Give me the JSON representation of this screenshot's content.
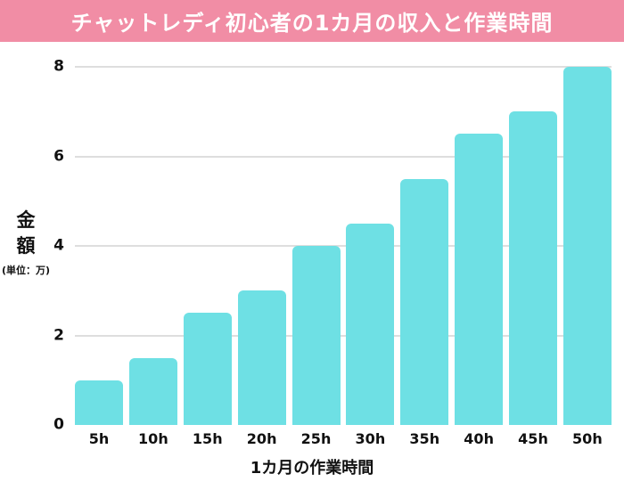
{
  "header": {
    "title": "チャットレディ初心者の1カ月の収入と作業時間"
  },
  "chart_data": {
    "type": "bar",
    "title": "チャットレディ初心者の1カ月の収入と作業時間",
    "categories": [
      "5h",
      "10h",
      "15h",
      "20h",
      "25h",
      "30h",
      "35h",
      "40h",
      "45h",
      "50h"
    ],
    "values": [
      1,
      1.5,
      2.5,
      3,
      4,
      4.5,
      5.5,
      6.5,
      7,
      8
    ],
    "xlabel": "1カ月の作業時間",
    "ylabel": "金額",
    "ylabel_unit": "(単位：万)",
    "ylim": [
      0,
      8
    ],
    "yticks": [
      0,
      2,
      4,
      6,
      8
    ],
    "grid": "horizontal-only",
    "legend": "none",
    "colors": {
      "bar": "#6EE0E4",
      "banner_bg": "#F18DA5",
      "banner_text": "#FFFFFF",
      "grid": "#DEDEDE",
      "text": "#111111"
    }
  }
}
